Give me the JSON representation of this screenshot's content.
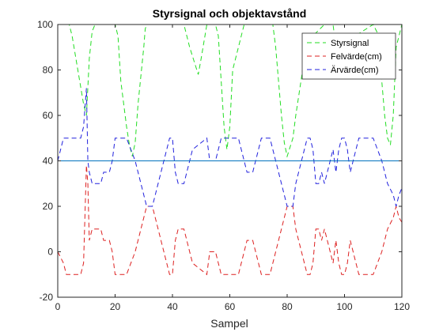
{
  "chart_data": {
    "type": "line",
    "title": "Styrsignal och objektavstånd",
    "xlabel": "Sampel",
    "ylabel": "",
    "xlim": [
      0,
      120
    ],
    "ylim": [
      -20,
      100
    ],
    "xticks": [
      0,
      20,
      40,
      60,
      80,
      100,
      120
    ],
    "yticks": [
      -20,
      0,
      20,
      40,
      60,
      80,
      100
    ],
    "grid": false,
    "legend_position": "top-right",
    "series": [
      {
        "name": "Styrsignal",
        "color": "#22dd22",
        "style": "dashed",
        "x": [
          0,
          4,
          5,
          7,
          9,
          10,
          11,
          12,
          13,
          16,
          20,
          21,
          22,
          24,
          25,
          26,
          27,
          28,
          30,
          30.5,
          31,
          33,
          38,
          40,
          44,
          45,
          46,
          49,
          50,
          52,
          53,
          55,
          56,
          57,
          58,
          59,
          60,
          61,
          65,
          70,
          75,
          76,
          77,
          78,
          79,
          80,
          82,
          83,
          86,
          89,
          93,
          96,
          97,
          99,
          100,
          110,
          112,
          113,
          114,
          115,
          116,
          117,
          118,
          120
        ],
        "y": [
          100,
          100,
          95,
          80,
          65,
          60,
          85,
          97,
          100,
          100,
          100,
          95,
          75,
          55,
          47,
          42,
          48,
          65,
          90,
          98,
          100,
          100,
          100,
          100,
          100,
          95,
          90,
          78,
          85,
          100,
          100,
          100,
          95,
          75,
          55,
          45,
          55,
          80,
          100,
          100,
          100,
          90,
          75,
          60,
          48,
          42,
          50,
          60,
          85,
          95,
          100,
          100,
          90,
          80,
          92,
          100,
          95,
          75,
          60,
          50,
          47,
          60,
          90,
          100
        ]
      },
      {
        "name": "Felvärde(cm)",
        "color": "#dd2020",
        "style": "dashed",
        "x": [
          0,
          2,
          3,
          8,
          9,
          10,
          10.5,
          11,
          12,
          13,
          15,
          16,
          18,
          19,
          20,
          23,
          24,
          27,
          30,
          31,
          33,
          34,
          35,
          36,
          37,
          38,
          39,
          40,
          41,
          42,
          43,
          44,
          45,
          46,
          47,
          52,
          53,
          54,
          55,
          56,
          57,
          60,
          63,
          64,
          65,
          66,
          67,
          68,
          69,
          71,
          72,
          73,
          74,
          75,
          76,
          77,
          78,
          79,
          80,
          81,
          82,
          83,
          84,
          85,
          86,
          87,
          88,
          89,
          90,
          91,
          92,
          93,
          94,
          95,
          96,
          97,
          98,
          99,
          100,
          101,
          102,
          103,
          104,
          105,
          110,
          113,
          115,
          117,
          118,
          119,
          120
        ],
        "y": [
          0,
          -5,
          -10,
          -10,
          -5,
          38,
          30,
          5,
          10,
          10,
          10,
          5,
          5,
          0,
          -10,
          -10,
          -10,
          0,
          15,
          20,
          20,
          15,
          10,
          5,
          0,
          -5,
          -10,
          -10,
          5,
          10,
          10,
          10,
          5,
          0,
          -5,
          -10,
          0,
          0,
          0,
          -5,
          -10,
          -10,
          -10,
          -5,
          0,
          5,
          5,
          5,
          0,
          -10,
          -10,
          -10,
          -10,
          -5,
          0,
          5,
          10,
          15,
          20,
          20,
          20,
          10,
          5,
          0,
          -5,
          -10,
          -10,
          -5,
          10,
          10,
          5,
          10,
          5,
          0,
          -5,
          5,
          -5,
          -10,
          -10,
          -5,
          5,
          0,
          -5,
          -10,
          -10,
          0,
          10,
          15,
          20,
          15,
          13
        ]
      },
      {
        "name": "Ärvärde(cm)",
        "color": "#2020dd",
        "style": "dashed",
        "x": [
          0,
          1,
          2,
          3,
          8,
          9,
          10,
          10.5,
          11,
          12,
          13,
          15,
          16,
          18,
          19,
          20,
          23,
          24,
          27,
          30,
          31,
          33,
          34,
          35,
          36,
          37,
          38,
          39,
          40,
          41,
          42,
          43,
          44,
          45,
          46,
          47,
          52,
          53,
          54,
          55,
          56,
          57,
          60,
          63,
          64,
          65,
          66,
          67,
          68,
          69,
          71,
          72,
          73,
          74,
          75,
          76,
          77,
          78,
          79,
          80,
          81,
          82,
          83,
          84,
          85,
          86,
          87,
          88,
          89,
          90,
          91,
          92,
          93,
          94,
          95,
          96,
          97,
          98,
          99,
          100,
          101,
          102,
          103,
          104,
          105,
          110,
          113,
          115,
          117,
          118,
          119,
          120
        ],
        "y": [
          40,
          45,
          50,
          50,
          50,
          55,
          72,
          40,
          35,
          30,
          30,
          30,
          35,
          35,
          40,
          50,
          50,
          50,
          40,
          25,
          20,
          20,
          25,
          30,
          35,
          40,
          45,
          50,
          50,
          35,
          30,
          30,
          30,
          35,
          40,
          45,
          50,
          40,
          40,
          40,
          45,
          50,
          50,
          50,
          45,
          40,
          35,
          35,
          35,
          40,
          50,
          50,
          50,
          50,
          45,
          40,
          35,
          30,
          25,
          20,
          20,
          20,
          30,
          35,
          40,
          45,
          50,
          50,
          45,
          30,
          30,
          35,
          30,
          35,
          40,
          45,
          35,
          45,
          50,
          50,
          45,
          35,
          40,
          45,
          50,
          50,
          40,
          30,
          25,
          20,
          25,
          28
        ]
      },
      {
        "name": "",
        "color": "#0072bd",
        "style": "solid",
        "x": [
          0,
          120
        ],
        "y": [
          40,
          40
        ]
      }
    ]
  }
}
